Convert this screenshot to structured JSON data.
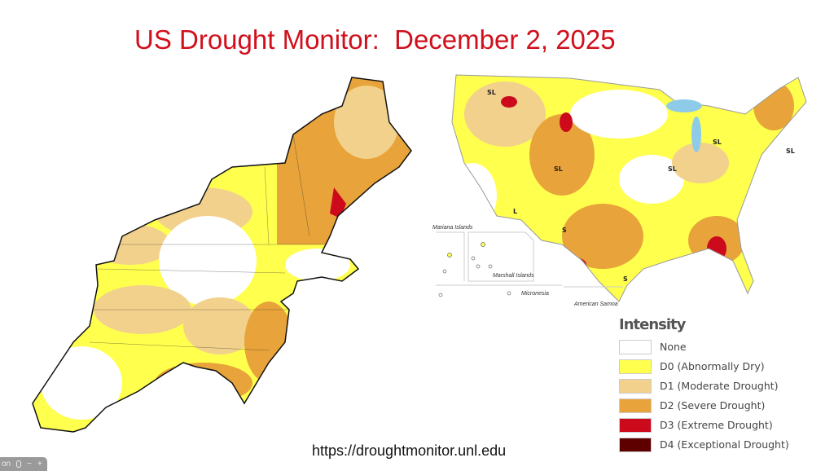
{
  "title": "US Drought Monitor:  December 2, 2025",
  "url": "https://droughtmonitor.unl.edu",
  "us_map": {
    "labels": {
      "mariana": "Mariana Islands",
      "marshall": "Marshall Islands",
      "micronesia": "Micronesia",
      "samoa": "American Samoa",
      "s": "S",
      "l": "L",
      "sl": "SL"
    }
  },
  "legend": {
    "title": "Intensity",
    "items": [
      {
        "label": "None",
        "color": "#ffffff"
      },
      {
        "label": "D0 (Abnormally Dry)",
        "color": "#ffff4d"
      },
      {
        "label": "D1 (Moderate Drought)",
        "color": "#f2d18c"
      },
      {
        "label": "D2 (Severe Drought)",
        "color": "#e8a33a"
      },
      {
        "label": "D3 (Extreme Drought)",
        "color": "#cc0a1c"
      },
      {
        "label": "D4 (Exceptional Drought)",
        "color": "#5e0000"
      }
    ]
  },
  "controls": {
    "left": "on",
    "minus": "−",
    "plus": "+"
  }
}
